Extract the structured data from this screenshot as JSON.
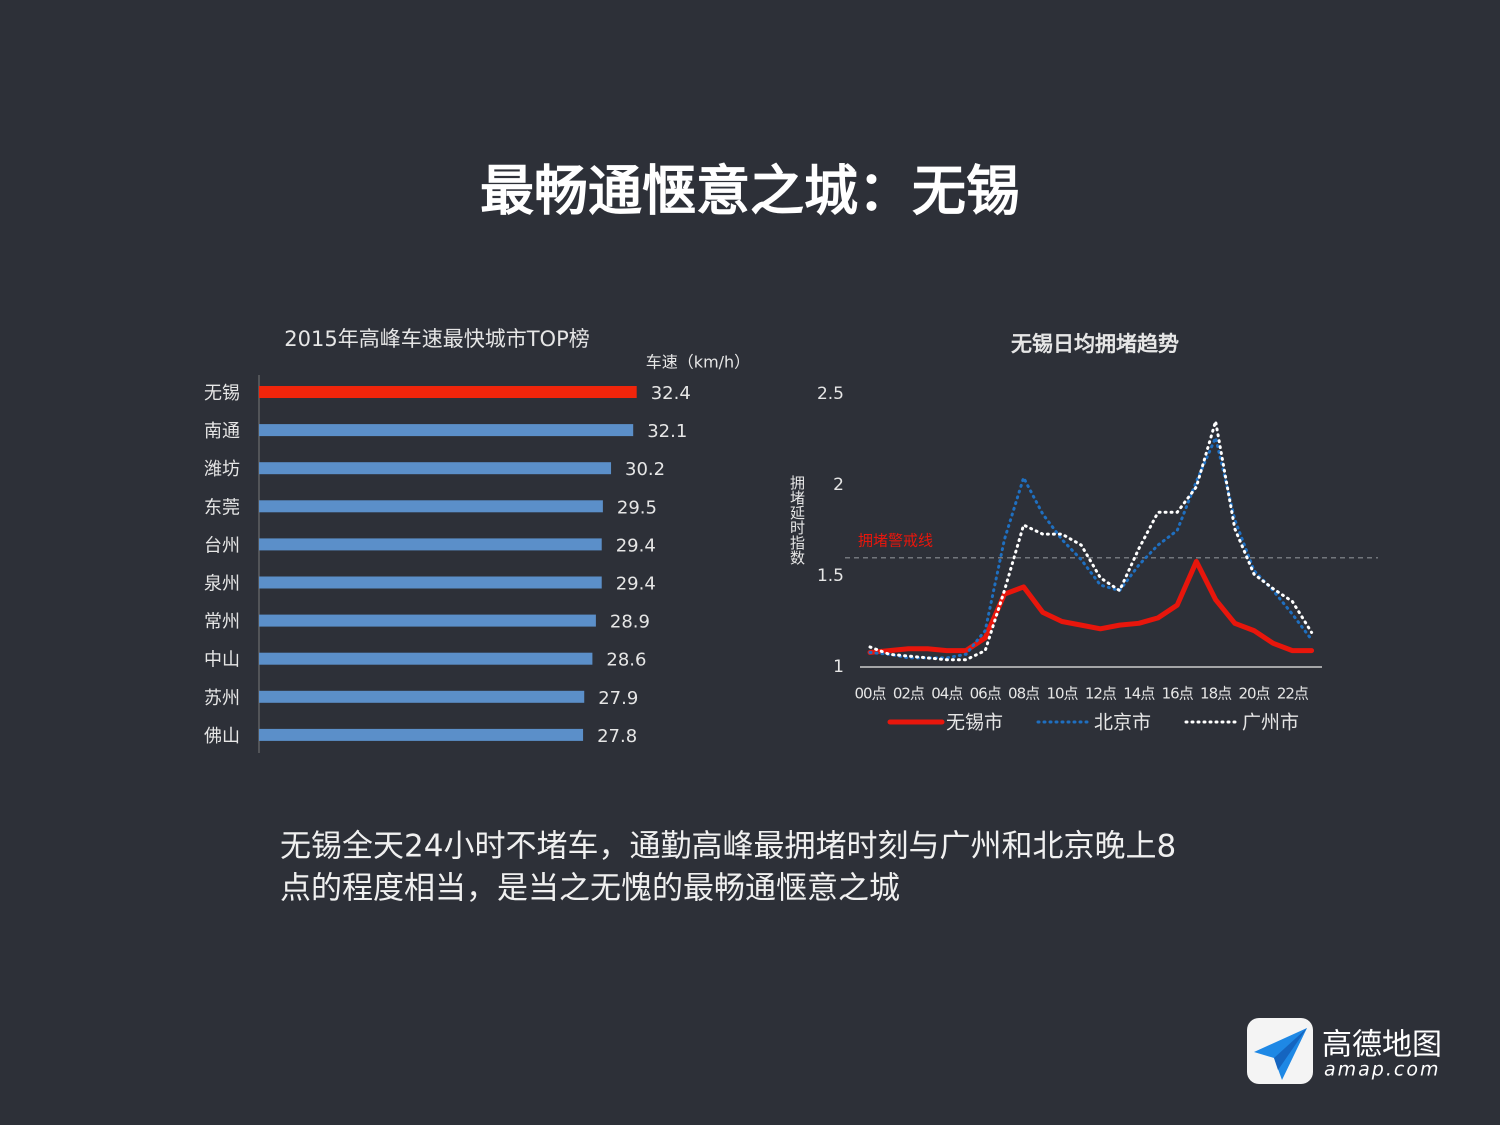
{
  "title": "最畅通惬意之城：无锡",
  "body": {
    "lines": [
      "无锡全天24小时不堵车，通勤高峰最拥堵时刻与广州和北京晚上8",
      "点的程度相当，是当之无愧的最畅通惬意之城"
    ]
  },
  "logo": {
    "name": "高德地图",
    "domain": "amap.com"
  },
  "chart_data": [
    {
      "type": "hbar",
      "title": "2015年高峰车速最快城市TOP榜",
      "value_axis_label": "车速（km/h）",
      "categories": [
        "无锡",
        "南通",
        "潍坊",
        "东莞",
        "台州",
        "泉州",
        "常州",
        "中山",
        "苏州",
        "佛山"
      ],
      "values": [
        32.4,
        32.1,
        30.2,
        29.5,
        29.4,
        29.4,
        28.9,
        28.6,
        27.9,
        27.8
      ],
      "colors": [
        "#f0250b",
        "#5b8fc9",
        "#5b8fc9",
        "#5b8fc9",
        "#5b8fc9",
        "#5b8fc9",
        "#5b8fc9",
        "#5b8fc9",
        "#5b8fc9",
        "#5b8fc9"
      ],
      "xlim": [
        0,
        35
      ]
    },
    {
      "type": "line",
      "title": "无锡日均拥堵趋势",
      "y_label": "拥堵延时指数",
      "categories": [
        "00点",
        null,
        "02点",
        null,
        "04点",
        null,
        "06点",
        null,
        "08点",
        null,
        "10点",
        null,
        "12点",
        null,
        "14点",
        null,
        "16点",
        null,
        "18点",
        null,
        "20点",
        null,
        "22点",
        null
      ],
      "series": [
        {
          "name": "无锡市",
          "color": "#e8160c",
          "style": "solid",
          "values": [
            1.08,
            1.09,
            1.1,
            1.1,
            1.09,
            1.09,
            1.16,
            1.4,
            1.44,
            1.3,
            1.25,
            1.23,
            1.21,
            1.23,
            1.24,
            1.27,
            1.34,
            1.58,
            1.37,
            1.24,
            1.2,
            1.13,
            1.09,
            1.09
          ]
        },
        {
          "name": "北京市",
          "color": "#1f6fc0",
          "style": "dotted",
          "values": [
            1.08,
            1.07,
            1.05,
            1.05,
            1.05,
            1.07,
            1.2,
            1.7,
            2.04,
            1.84,
            1.7,
            1.59,
            1.45,
            1.42,
            1.56,
            1.67,
            1.75,
            2.02,
            2.26,
            1.81,
            1.53,
            1.42,
            1.29,
            1.15
          ]
        },
        {
          "name": "广州市",
          "color": "#ffffff",
          "style": "dotted",
          "values": [
            1.11,
            1.07,
            1.06,
            1.05,
            1.04,
            1.04,
            1.09,
            1.42,
            1.78,
            1.73,
            1.73,
            1.67,
            1.49,
            1.42,
            1.65,
            1.85,
            1.85,
            1.99,
            2.35,
            1.76,
            1.51,
            1.43,
            1.36,
            1.19
          ]
        }
      ],
      "ylim": [
        1,
        2.5
      ],
      "yticks": [
        1,
        1.5,
        2,
        2.5
      ],
      "reference_line": {
        "value": 1.6,
        "label": "拥堵警戒线",
        "color": "#e8160c"
      },
      "legend": "bottom"
    }
  ]
}
